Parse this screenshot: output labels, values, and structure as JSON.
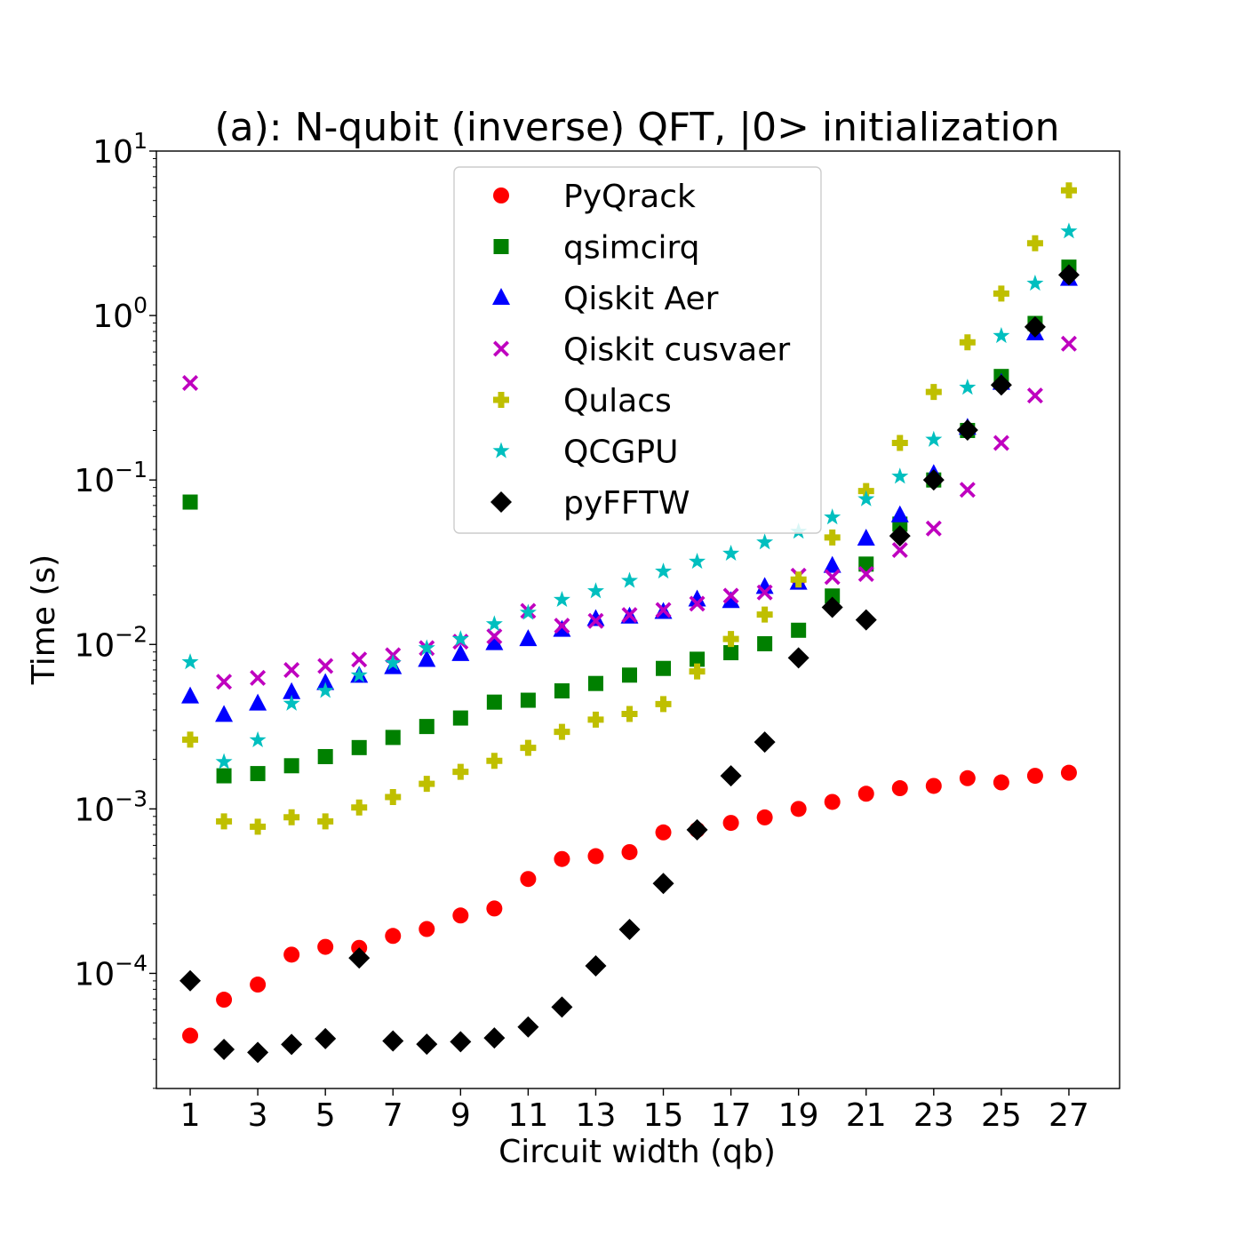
{
  "chart_data": {
    "type": "scatter",
    "title": "(a): N-qubit (inverse) QFT, |0> initialization",
    "xlabel": "Circuit width (qb)",
    "ylabel": "Time (s)",
    "xlim": [
      0,
      28.5
    ],
    "ylim_log10": [
      -4.7,
      1.0
    ],
    "yscale": "log",
    "x_ticks": [
      1,
      3,
      5,
      7,
      9,
      11,
      13,
      15,
      17,
      19,
      21,
      23,
      25,
      27
    ],
    "x_tick_labels": [
      "1",
      "3",
      "5",
      "7",
      "9",
      "11",
      "13",
      "15",
      "17",
      "19",
      "21",
      "23",
      "25",
      "27"
    ],
    "y_ticks_log10": [
      -4,
      -3,
      -2,
      -1,
      0,
      1
    ],
    "y_tick_labels": [
      {
        "base": "10",
        "exp": "−4"
      },
      {
        "base": "10",
        "exp": "−3"
      },
      {
        "base": "10",
        "exp": "−2"
      },
      {
        "base": "10",
        "exp": "−1"
      },
      {
        "base": "10",
        "exp": "0"
      },
      {
        "base": "10",
        "exp": "1"
      }
    ],
    "grid": false,
    "legend_position": "top-center",
    "x": [
      1,
      2,
      3,
      4,
      5,
      6,
      7,
      8,
      9,
      10,
      11,
      12,
      13,
      14,
      15,
      16,
      17,
      18,
      19,
      20,
      21,
      22,
      23,
      24,
      25,
      26,
      27
    ],
    "series": [
      {
        "name": "PyQrack",
        "marker": "circle",
        "color": "#ff0000",
        "values": [
          4.18e-05,
          6.92e-05,
          8.55e-05,
          0.00013,
          0.000145,
          0.000143,
          0.000169,
          0.000186,
          0.000225,
          0.000248,
          0.000375,
          0.000496,
          0.000516,
          0.000546,
          0.00072,
          0.000746,
          0.000822,
          0.000888,
          0.001,
          0.001103,
          0.001237,
          0.001337,
          0.00138,
          0.001537,
          0.001449,
          0.00159,
          0.001659
        ]
      },
      {
        "name": "qsimcirq",
        "marker": "square",
        "color": "#008000",
        "values": [
          0.0734,
          0.00159,
          0.00164,
          0.00183,
          0.00208,
          0.00236,
          0.00272,
          0.00317,
          0.00357,
          0.00446,
          0.00458,
          0.00522,
          0.00579,
          0.00651,
          0.00715,
          0.00813,
          0.00891,
          0.0101,
          0.0122,
          0.0197,
          0.0308,
          0.0539,
          0.1,
          0.2,
          0.426,
          0.895,
          1.969
        ]
      },
      {
        "name": "Qiskit Aer",
        "marker": "triangle",
        "color": "#0000ff",
        "values": [
          0.00484,
          0.00374,
          0.00438,
          0.00514,
          0.00584,
          0.00646,
          0.00729,
          0.00807,
          0.00877,
          0.0102,
          0.0108,
          0.0123,
          0.0143,
          0.0148,
          0.0158,
          0.0188,
          0.0184,
          0.0224,
          0.0238,
          0.0301,
          0.0441,
          0.0611,
          0.109,
          0.208,
          0.391,
          0.781,
          1.675
        ]
      },
      {
        "name": "Qiskit cusvaer",
        "marker": "x",
        "color": "#bf00bf",
        "values": [
          0.389,
          0.00593,
          0.00626,
          0.00699,
          0.0074,
          0.0081,
          0.0086,
          0.0095,
          0.0104,
          0.0112,
          0.016,
          0.013,
          0.0139,
          0.0151,
          0.0162,
          0.0177,
          0.0198,
          0.0207,
          0.0262,
          0.0257,
          0.0268,
          0.0375,
          0.0507,
          0.0871,
          0.168,
          0.326,
          0.674
        ]
      },
      {
        "name": "Qulacs",
        "marker": "plus",
        "color": "#bfbf00",
        "values": [
          0.00264,
          0.00084,
          0.00078,
          0.00089,
          0.00084,
          0.00102,
          0.00118,
          0.00142,
          0.00168,
          0.00196,
          0.00235,
          0.00294,
          0.00349,
          0.00378,
          0.00434,
          0.00685,
          0.0108,
          0.0152,
          0.0248,
          0.0447,
          0.0856,
          0.168,
          0.343,
          0.687,
          1.36,
          2.752,
          5.769
        ]
      },
      {
        "name": "QCGPU",
        "marker": "star",
        "color": "#00bfbf",
        "values": [
          0.00781,
          0.00193,
          0.00262,
          0.00437,
          0.00523,
          0.00649,
          0.0077,
          0.0095,
          0.0108,
          0.0133,
          0.0156,
          0.0187,
          0.0211,
          0.0244,
          0.0278,
          0.0319,
          0.0357,
          0.0418,
          0.0486,
          0.0593,
          0.0765,
          0.105,
          0.176,
          0.365,
          0.752,
          1.566,
          3.25
        ]
      },
      {
        "name": "pyFFTW",
        "marker": "diamond",
        "color": "#000000",
        "values": [
          9.02e-05,
          3.45e-05,
          3.31e-05,
          3.7e-05,
          4.01e-05,
          0.000124,
          3.88e-05,
          3.71e-05,
          3.84e-05,
          4.05e-05,
          4.72e-05,
          6.24e-05,
          0.000111,
          0.000185,
          0.000352,
          0.000746,
          0.00159,
          0.00255,
          0.00829,
          0.0168,
          0.0141,
          0.0457,
          0.1,
          0.201,
          0.378,
          0.853,
          1.767
        ]
      }
    ]
  }
}
